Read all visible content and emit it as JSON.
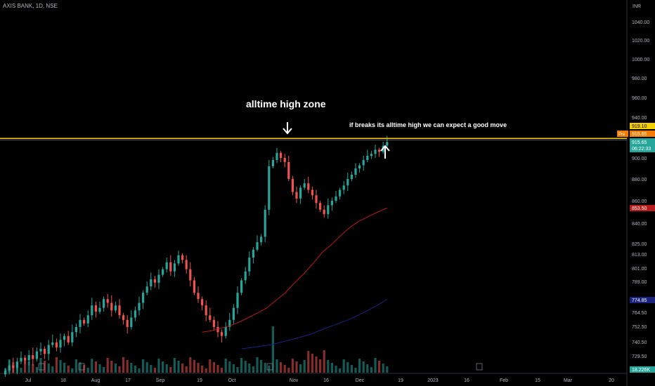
{
  "header": {
    "symbol": "AXIS BANK, 1D, NSE"
  },
  "currency": "INR",
  "annotations": {
    "zone_label": "alltime high zone",
    "break_text": "if breaks its alltime high we can expect a good move"
  },
  "badges": {
    "pre_tag": "Pre",
    "pre_price": "915.65",
    "high_line": "919.10",
    "last_price": "915.65",
    "countdown": "06:22:33",
    "ma_short": "853.50",
    "ma_long": "774.85",
    "volume": "18.226K"
  },
  "colors": {
    "up": "#26a69a",
    "down": "#ef5350",
    "resistance": "#f5d000",
    "ma_short": "#b71c1c",
    "ma_long": "#1a237e",
    "background": "#000000"
  },
  "chart_data": {
    "type": "candlestick",
    "y_ticks": [
      "1040.00",
      "1020.00",
      "1000.00",
      "980.00",
      "960.00",
      "940.00",
      "900.00",
      "880.00",
      "860.00",
      "840.00",
      "825.00",
      "813.00",
      "801.00",
      "789.00",
      "764.50",
      "752.50",
      "740.50",
      "729.50"
    ],
    "x_ticks": [
      "Jul",
      "18",
      "Aug",
      "17",
      "Sep",
      "19",
      "Oct",
      "Nov",
      "16",
      "Dec",
      "19",
      "2023",
      "16",
      "Feb",
      "15",
      "Mar",
      "20"
    ],
    "resistance_level": 919.1,
    "candles_close": [
      718,
      722,
      720,
      725,
      728,
      726,
      730,
      727,
      733,
      735,
      731,
      738,
      740,
      736,
      742,
      745,
      740,
      748,
      752,
      758,
      755,
      762,
      770,
      765,
      768,
      775,
      772,
      766,
      770,
      762,
      758,
      752,
      760,
      766,
      772,
      780,
      785,
      791,
      788,
      795,
      800,
      806,
      798,
      805,
      812,
      808,
      800,
      790,
      780,
      775,
      770,
      762,
      758,
      752,
      748,
      745,
      752,
      758,
      768,
      780,
      790,
      798,
      810,
      818,
      826,
      830,
      852,
      892,
      898,
      905,
      900,
      896,
      880,
      868,
      862,
      872,
      876,
      870,
      865,
      858,
      852,
      848,
      856,
      860,
      864,
      870,
      874,
      880,
      884,
      890,
      893,
      898,
      902,
      904,
      908,
      906,
      912,
      915.65
    ],
    "ma_short_series": [
      748,
      749,
      751,
      753,
      756,
      760,
      764,
      768,
      774,
      780,
      788,
      796,
      805,
      815,
      824,
      831,
      837,
      842,
      846,
      850,
      853.5
    ],
    "ma_long_series": [
      735,
      736,
      737,
      738,
      740,
      742,
      744,
      746,
      749,
      752,
      755,
      758,
      762,
      766,
      770,
      774.85
    ]
  }
}
